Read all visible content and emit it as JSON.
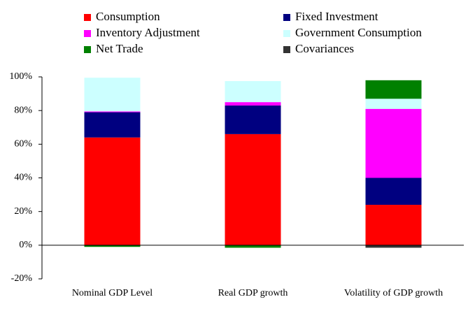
{
  "chart_data": {
    "type": "stacked_bar",
    "categories": [
      "Nominal GDP Level",
      "Real GDP growth",
      "Volatility of GDP growth"
    ],
    "series": [
      {
        "name": "Consumption",
        "color": "#ff0000",
        "values": [
          64,
          66,
          24
        ]
      },
      {
        "name": "Fixed Investment",
        "color": "#000080",
        "values": [
          15,
          17,
          16
        ]
      },
      {
        "name": "Inventory Adjustment",
        "color": "#ff00ff",
        "values": [
          0.5,
          2,
          41
        ]
      },
      {
        "name": "Government Consumption",
        "color": "#ccffff",
        "values": [
          20,
          12.5,
          6
        ]
      },
      {
        "name": "Net Trade",
        "color": "#008000",
        "values": [
          -1,
          -1.5,
          11
        ]
      },
      {
        "name": "Covariances",
        "color": "#333333",
        "values": [
          0,
          0,
          -1.5
        ]
      }
    ],
    "ylim": [
      -20,
      100
    ],
    "yticks": [
      {
        "value": -20,
        "label": "-20%"
      },
      {
        "value": 0,
        "label": "0%"
      },
      {
        "value": 20,
        "label": "20%"
      },
      {
        "value": 40,
        "label": "40%"
      },
      {
        "value": 60,
        "label": "60%"
      },
      {
        "value": 80,
        "label": "80%"
      },
      {
        "value": 100,
        "label": "100%"
      }
    ]
  }
}
